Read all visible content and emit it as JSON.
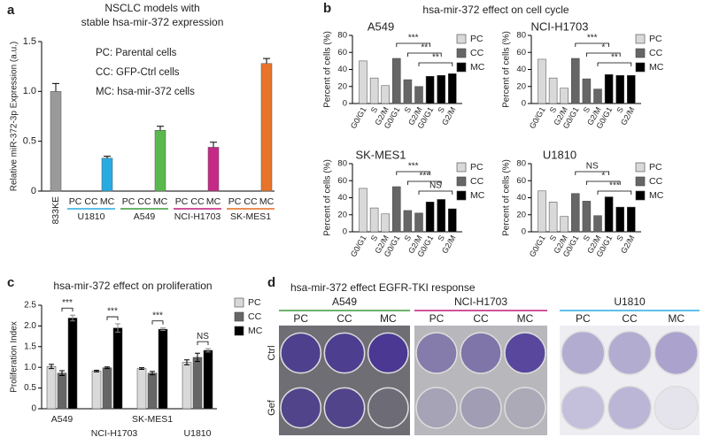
{
  "panel_labels": [
    "a",
    "b",
    "c",
    "d"
  ],
  "cell_cycle_title": "hsa-mir-372 effect on cell cycle",
  "chart_data": [
    {
      "type": "bar",
      "title": [
        "NSCLC models with",
        "stable hsa-mir-372 expression"
      ],
      "annotations": [
        "PC: Parental cells",
        "CC: GFP-Ctrl cells",
        "MC: hsa-mir-372 cells"
      ],
      "y_label": "Relative miR-372-3p Expression (a.u.)",
      "ylim": [
        0,
        1.5
      ],
      "yticks": [
        0,
        0.5,
        {
          "value": 1,
          "label": "1.0"
        },
        1.5
      ],
      "categories": [
        "833KE",
        "PC",
        "CC",
        "MC",
        "PC",
        "CC",
        "MC",
        "PC",
        "CC",
        "MC",
        "PC",
        "CC",
        "MC"
      ],
      "values": [
        1.0,
        0,
        0,
        0.33,
        0,
        0,
        0.61,
        0,
        0,
        0.44,
        0,
        0,
        1.28
      ],
      "errors": [
        0.08,
        null,
        null,
        0.02,
        null,
        null,
        0.04,
        null,
        null,
        0.05,
        null,
        null,
        0.05
      ],
      "colors": [
        "#9a9a9a",
        "#9a9a9a",
        "#9a9a9a",
        "#29abe2",
        "#9a9a9a",
        "#9a9a9a",
        "#5ab94d",
        "#9a9a9a",
        "#9a9a9a",
        "#c42a86",
        "#9a9a9a",
        "#9a9a9a",
        "#e8732a"
      ],
      "groups": [
        {
          "name": "U1810",
          "color": "#29abe2"
        },
        {
          "name": "A549",
          "color": "#3a9b3a"
        },
        {
          "name": "NCI-H1703",
          "color": "#c2187a"
        },
        {
          "name": "SK-MES1",
          "color": "#e46c1f"
        }
      ]
    },
    {
      "type": "bar",
      "title": "A549",
      "title_color": "#3a9b3a",
      "y_label": "Percent of cells (%)",
      "ylim": [
        0,
        80
      ],
      "yticks": [
        0,
        20,
        40,
        60,
        80
      ],
      "categories": [
        "G0/G1",
        "S",
        "G2/M"
      ],
      "series": [
        {
          "name": "PC",
          "color": "#d9d9d9",
          "values": [
            50,
            30,
            21
          ]
        },
        {
          "name": "CC",
          "color": "#666666",
          "values": [
            53,
            28,
            20
          ]
        },
        {
          "name": "MC",
          "color": "#000000",
          "values": [
            32,
            33,
            35
          ]
        }
      ],
      "significance": [
        "***",
        "**",
        "**"
      ]
    },
    {
      "type": "bar",
      "title": "NCI-H1703",
      "title_color": "#c2187a",
      "y_label": "Percent of cells (%)",
      "ylim": [
        0,
        80
      ],
      "yticks": [
        0,
        20,
        40,
        60,
        80
      ],
      "categories": [
        "G0/G1",
        "S",
        "G2/M"
      ],
      "series": [
        {
          "name": "PC",
          "color": "#d9d9d9",
          "values": [
            52,
            30,
            18
          ]
        },
        {
          "name": "CC",
          "color": "#666666",
          "values": [
            53,
            29,
            17
          ]
        },
        {
          "name": "MC",
          "color": "#000000",
          "values": [
            34,
            33,
            33
          ]
        }
      ],
      "significance": [
        "***",
        "*",
        "**"
      ]
    },
    {
      "type": "bar",
      "title": "SK-MES1",
      "title_color": "#e46c1f",
      "y_label": "Percent of cells (%)",
      "ylim": [
        0,
        80
      ],
      "yticks": [
        0,
        20,
        40,
        60,
        80
      ],
      "categories": [
        "G0/G1",
        "S",
        "G2/M"
      ],
      "series": [
        {
          "name": "PC",
          "color": "#d9d9d9",
          "values": [
            51,
            28,
            21
          ]
        },
        {
          "name": "CC",
          "color": "#666666",
          "values": [
            53,
            25,
            22
          ]
        },
        {
          "name": "MC",
          "color": "#000000",
          "values": [
            35,
            38,
            27
          ]
        }
      ],
      "significance": [
        "***",
        "***",
        "NS"
      ]
    },
    {
      "type": "bar",
      "title": "U1810",
      "title_color": "#29abe2",
      "y_label": "Percent of cells (%)",
      "ylim": [
        0,
        80
      ],
      "yticks": [
        0,
        20,
        40,
        60,
        80
      ],
      "categories": [
        "G0/G1",
        "S",
        "G2/M"
      ],
      "series": [
        {
          "name": "PC",
          "color": "#d9d9d9",
          "values": [
            48,
            35,
            18
          ]
        },
        {
          "name": "CC",
          "color": "#666666",
          "values": [
            45,
            36,
            19
          ]
        },
        {
          "name": "MC",
          "color": "#000000",
          "values": [
            41,
            29,
            29
          ]
        }
      ],
      "significance": [
        "NS",
        "*",
        "***"
      ]
    },
    {
      "type": "bar",
      "title": "hsa-mir-372 effect on proliferation",
      "y_label": "Proliferation Index",
      "ylim": [
        0,
        2.5
      ],
      "yticks": [
        0,
        0.5,
        {
          "value": 1,
          "label": "1.0"
        },
        1.5,
        {
          "value": 2,
          "label": "2.0"
        },
        2.5
      ],
      "categories": [
        "A549",
        "NCI-H1703",
        "SK-MES1",
        "U1810"
      ],
      "category_colors": [
        "#3a9b3a",
        "#c2187a",
        "#e46c1f",
        "#29abe2"
      ],
      "series": [
        {
          "name": "PC",
          "color": "#d9d9d9",
          "values": [
            1.02,
            0.91,
            0.97,
            1.12
          ],
          "errors": [
            0.05,
            0.02,
            0.02,
            0.06
          ]
        },
        {
          "name": "CC",
          "color": "#666666",
          "values": [
            0.86,
            0.99,
            0.86,
            1.24
          ],
          "errors": [
            0.06,
            0.02,
            0.04,
            0.1
          ]
        },
        {
          "name": "MC",
          "color": "#000000",
          "values": [
            2.19,
            1.95,
            1.92,
            1.41
          ],
          "errors": [
            0.07,
            0.1,
            0.03,
            0.04
          ]
        }
      ],
      "significance": [
        "***",
        "***",
        "***",
        "NS"
      ]
    }
  ],
  "panel_d": {
    "title": "hsa-mir-372 effect EGFR-TKI response",
    "rows": [
      "Ctrl",
      "Gef"
    ],
    "groups": [
      {
        "name": "A549",
        "color": "#3a9b3a",
        "labels": [
          "PC",
          "CC",
          "MC"
        ]
      },
      {
        "name": "NCI-H1703",
        "color": "#c2187a",
        "labels": [
          "PC",
          "CC",
          "MC"
        ]
      },
      {
        "name": "U1810",
        "color": "#29abe2",
        "labels": [
          "PC",
          "CC",
          "MC"
        ]
      }
    ]
  }
}
